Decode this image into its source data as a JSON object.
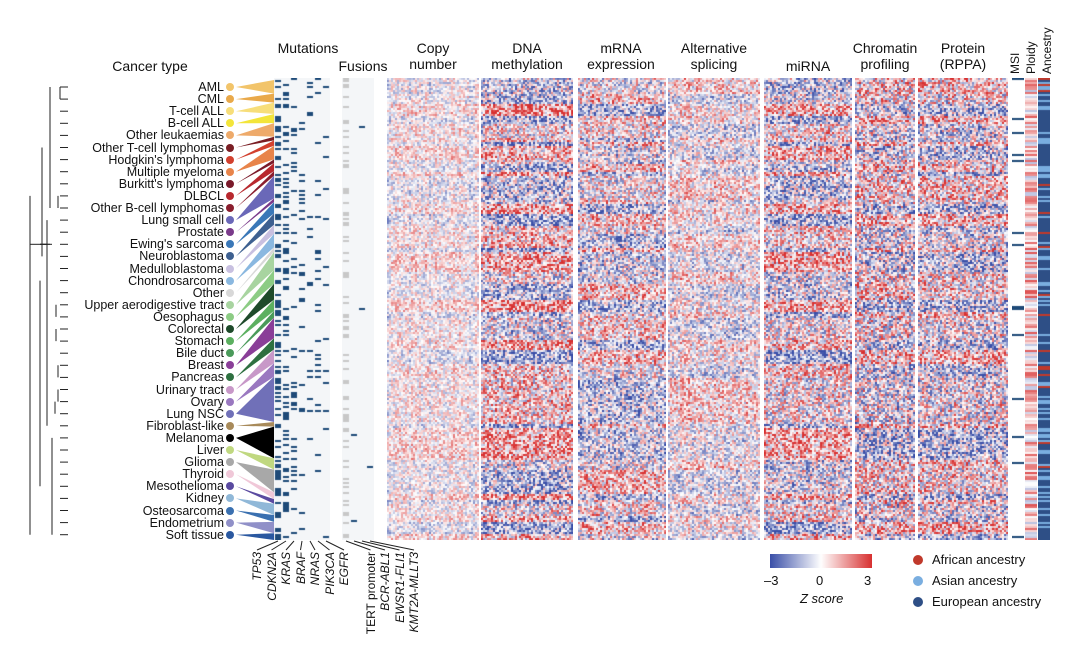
{
  "chart_data": {
    "type": "heatmap",
    "row_group_title": "Cancer type",
    "row_groups": [
      {
        "name": "AML",
        "color": "#f2c46a"
      },
      {
        "name": "CML",
        "color": "#e9a94a"
      },
      {
        "name": "T-cell ALL",
        "color": "#f7de7a"
      },
      {
        "name": "B-cell ALL",
        "color": "#f3e53a"
      },
      {
        "name": "Other leukaemias",
        "color": "#eeaa6a"
      },
      {
        "name": "Other T-cell lymphomas",
        "color": "#7a1e24"
      },
      {
        "name": "Hodgkin's lymphoma",
        "color": "#d2402e"
      },
      {
        "name": "Multiple myeloma",
        "color": "#e8844a"
      },
      {
        "name": "Burkitt's lymphoma",
        "color": "#7a1a2a"
      },
      {
        "name": "DLBCL",
        "color": "#b8282e"
      },
      {
        "name": "Other B-cell lymphomas",
        "color": "#8a1e2e"
      },
      {
        "name": "Lung small cell",
        "color": "#6a68b8"
      },
      {
        "name": "Prostate",
        "color": "#7a3a8a"
      },
      {
        "name": "Ewing's sarcoma",
        "color": "#3a78b8"
      },
      {
        "name": "Neuroblastoma",
        "color": "#3e6090"
      },
      {
        "name": "Medulloblastoma",
        "color": "#c8c0e0"
      },
      {
        "name": "Chondrosarcoma",
        "color": "#8ab8e0"
      },
      {
        "name": "Other",
        "color": "#d8d8d8"
      },
      {
        "name": "Upper aerodigestive tract",
        "color": "#a8d4a0"
      },
      {
        "name": "Oesophagus",
        "color": "#8ccc84"
      },
      {
        "name": "Colorectal",
        "color": "#1e4a2a"
      },
      {
        "name": "Stomach",
        "color": "#5cb060"
      },
      {
        "name": "Bile duct",
        "color": "#4a9a5a"
      },
      {
        "name": "Breast",
        "color": "#8a3e98"
      },
      {
        "name": "Pancreas",
        "color": "#2e7040"
      },
      {
        "name": "Urinary tract",
        "color": "#c898c8"
      },
      {
        "name": "Ovary",
        "color": "#9a78c0"
      },
      {
        "name": "Lung NSC",
        "color": "#7070b8"
      },
      {
        "name": "Fibroblast-like",
        "color": "#a88a5a"
      },
      {
        "name": "Melanoma",
        "color": "#000000"
      },
      {
        "name": "Liver",
        "color": "#c0d880"
      },
      {
        "name": "Glioma",
        "color": "#a8a8a8"
      },
      {
        "name": "Thyroid",
        "color": "#f0c8d8"
      },
      {
        "name": "Mesothelioma",
        "color": "#5a4aa0"
      },
      {
        "name": "Kidney",
        "color": "#90b8d8"
      },
      {
        "name": "Osteosarcoma",
        "color": "#3a70b0"
      },
      {
        "name": "Endometrium",
        "color": "#9090c8"
      },
      {
        "name": "Soft tissue",
        "color": "#2a58a0"
      }
    ],
    "column_panels": [
      {
        "title": "Mutations",
        "columns": [
          "TP53",
          "CDKN2A",
          "KRAS",
          "BRAF",
          "NRAS",
          "PIK3CA",
          "EGFR"
        ]
      },
      {
        "title": "Fusions",
        "columns": [
          "TERT promoter",
          "BCR-ABL1",
          "EWSR1-FLI1",
          "KMT2A-MLLT3"
        ]
      },
      {
        "title": "Copy number"
      },
      {
        "title": "DNA methylation"
      },
      {
        "title": "mRNA expression"
      },
      {
        "title": "Alternative splicing"
      },
      {
        "title": "miRNA"
      },
      {
        "title": "Chromatin profiling"
      },
      {
        "title": "Protein (RPPA)"
      },
      {
        "title": "MSI"
      },
      {
        "title": "Ploidy"
      },
      {
        "title": "Ancestry"
      }
    ],
    "colorbar": {
      "label": "Z score",
      "min": -3,
      "mid": 0,
      "max": 3,
      "ticks": [
        "–3",
        "0",
        "3"
      ],
      "colors": [
        "#3a4fa8",
        "#ffffff",
        "#d83030"
      ]
    },
    "legend": [
      {
        "name": "African ancestry",
        "color": "#c0392b"
      },
      {
        "name": "Asian ancestry",
        "color": "#7aaee0"
      },
      {
        "name": "European ancestry",
        "color": "#2e4f86"
      }
    ],
    "mutation_color": "#1e4a78"
  },
  "headers": {
    "cancer_type": "Cancer type",
    "mutations": "Mutations",
    "fusions": "Fusions",
    "copy_number": [
      "Copy",
      "number"
    ],
    "dna_methylation": [
      "DNA",
      "methylation"
    ],
    "mrna": [
      "mRNA",
      "expression"
    ],
    "splicing": [
      "Alternative",
      "splicing"
    ],
    "mirna": "miRNA",
    "chromatin": [
      "Chromatin",
      "profiling"
    ],
    "protein": [
      "Protein",
      "(RPPA)"
    ],
    "msi": "MSI",
    "ploidy": "Ploidy",
    "ancestry": "Ancestry"
  }
}
